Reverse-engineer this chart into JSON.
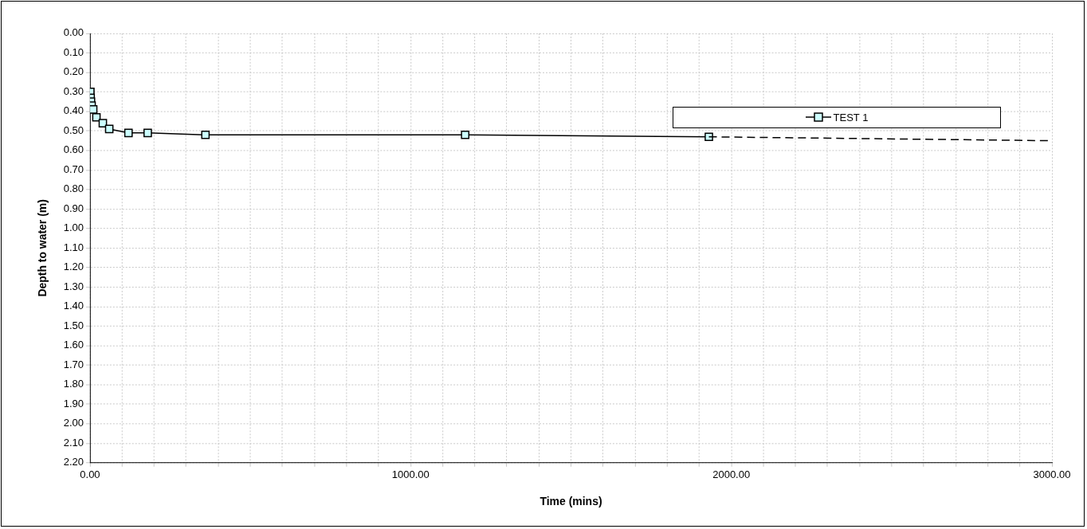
{
  "chart_data": {
    "type": "line",
    "xlabel": "Time (mins)",
    "ylabel": "Depth to water (m)",
    "series": [
      {
        "name": "TEST 1",
        "color": "#ccffff",
        "x": [
          0,
          1,
          2,
          3,
          5,
          10,
          20,
          40,
          60,
          120,
          180,
          360,
          1170,
          1930
        ],
        "values": [
          0.3,
          0.3,
          0.33,
          0.35,
          0.37,
          0.39,
          0.43,
          0.46,
          0.49,
          0.51,
          0.51,
          0.52,
          0.52,
          0.53
        ],
        "marker": "square",
        "line_style": "solid"
      },
      {
        "color": "#000000",
        "x": [
          1930,
          3000
        ],
        "values": [
          0.53,
          0.55
        ],
        "marker": "none",
        "line_style": "dashed"
      }
    ],
    "xlim": [
      0,
      3000
    ],
    "xticks": [
      {
        "value": 0,
        "label": "0.00"
      },
      {
        "value": 100,
        "label": null
      },
      {
        "value": 200,
        "label": null
      },
      {
        "value": 300,
        "label": null
      },
      {
        "value": 400,
        "label": null
      },
      {
        "value": 500,
        "label": null
      },
      {
        "value": 600,
        "label": null
      },
      {
        "value": 700,
        "label": null
      },
      {
        "value": 800,
        "label": null
      },
      {
        "value": 900,
        "label": null
      },
      {
        "value": 1000,
        "label": "1000.00"
      },
      {
        "value": 1100,
        "label": null
      },
      {
        "value": 1200,
        "label": null
      },
      {
        "value": 1300,
        "label": null
      },
      {
        "value": 1400,
        "label": null
      },
      {
        "value": 1500,
        "label": null
      },
      {
        "value": 1600,
        "label": null
      },
      {
        "value": 1700,
        "label": null
      },
      {
        "value": 1800,
        "label": null
      },
      {
        "value": 1900,
        "label": null
      },
      {
        "value": 2000,
        "label": "2000.00"
      },
      {
        "value": 2100,
        "label": null
      },
      {
        "value": 2200,
        "label": null
      },
      {
        "value": 2300,
        "label": null
      },
      {
        "value": 2400,
        "label": null
      },
      {
        "value": 2500,
        "label": null
      },
      {
        "value": 2600,
        "label": null
      },
      {
        "value": 2700,
        "label": null
      },
      {
        "value": 2800,
        "label": null
      },
      {
        "value": 2900,
        "label": null
      },
      {
        "value": 3000,
        "label": "3000.00"
      }
    ],
    "ylim": [
      2.2,
      0
    ],
    "yticks": [
      {
        "value": 0,
        "label": "0.00"
      },
      {
        "value": 0.1,
        "label": "0.10"
      },
      {
        "value": 0.2,
        "label": "0.20"
      },
      {
        "value": 0.3,
        "label": "0.30"
      },
      {
        "value": 0.4,
        "label": "0.40"
      },
      {
        "value": 0.5,
        "label": "0.50"
      },
      {
        "value": 0.6,
        "label": "0.60"
      },
      {
        "value": 0.7,
        "label": "0.70"
      },
      {
        "value": 0.8,
        "label": "0.80"
      },
      {
        "value": 0.9,
        "label": "0.90"
      },
      {
        "value": 1.0,
        "label": "1.00"
      },
      {
        "value": 1.1,
        "label": "1.10"
      },
      {
        "value": 1.2,
        "label": "1.20"
      },
      {
        "value": 1.3,
        "label": "1.30"
      },
      {
        "value": 1.4,
        "label": "1.40"
      },
      {
        "value": 1.5,
        "label": "1.50"
      },
      {
        "value": 1.6,
        "label": "1.60"
      },
      {
        "value": 1.7,
        "label": "1.70"
      },
      {
        "value": 1.8,
        "label": "1.80"
      },
      {
        "value": 1.9,
        "label": "1.90"
      },
      {
        "value": 2.0,
        "label": "2.00"
      },
      {
        "value": 2.1,
        "label": "2.10"
      },
      {
        "value": 2.2,
        "label": "2.20"
      }
    ],
    "grid": true,
    "legend": "top right"
  }
}
